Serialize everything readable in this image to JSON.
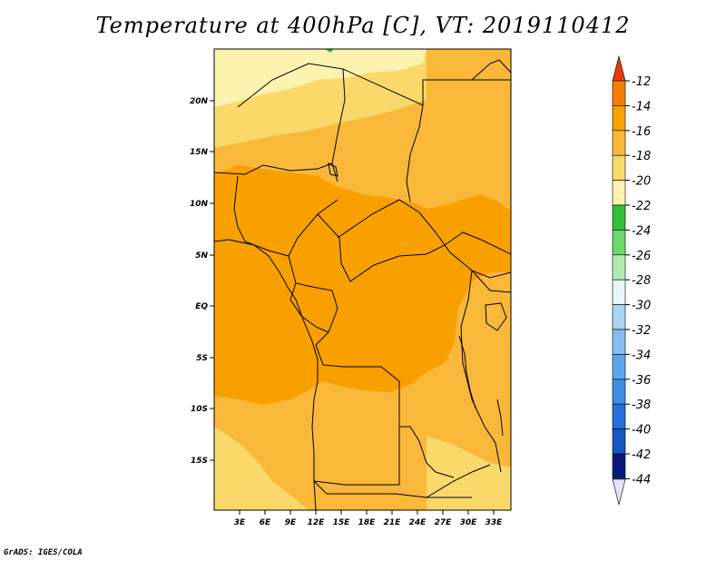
{
  "title": "Temperature at 400hPa [C], VT: 2019110412",
  "credit": "GrADS: IGES/COLA",
  "map": {
    "lat_labels": [
      "20N",
      "15N",
      "10N",
      "5N",
      "EQ",
      "5S",
      "10S",
      "15S"
    ],
    "lon_labels": [
      "3E",
      "6E",
      "9E",
      "12E",
      "15E",
      "18E",
      "21E",
      "24E",
      "27E",
      "30E",
      "33E"
    ]
  },
  "colorbar": {
    "levels": [
      "-12",
      "-14",
      "-16",
      "-18",
      "-20",
      "-22",
      "-24",
      "-26",
      "-28",
      "-30",
      "-32",
      "-34",
      "-36",
      "-38",
      "-40",
      "-42",
      "-44"
    ],
    "colors": [
      "#f04a10",
      "#f57e00",
      "#f7a000",
      "#f9b83a",
      "#fbd86a",
      "#fdf3b0",
      "#2fbf3a",
      "#6ad86a",
      "#b0ecb0",
      "#e4f8f8",
      "#aad4f4",
      "#86bef0",
      "#5ea6ec",
      "#3e8ce4",
      "#2670d8",
      "#1656c4",
      "#0a1a78"
    ],
    "top_color": "#e83a10",
    "bottom_color": "#e4e4f8"
  },
  "legend_colors": {
    "band_12_14": "#f57e00",
    "band_14_16": "#f7a000",
    "band_16_18": "#f9b83a",
    "band_18_20": "#fbd86a",
    "band_20_22": "#fdf3b0",
    "green_spot": "#2fbf3a"
  }
}
